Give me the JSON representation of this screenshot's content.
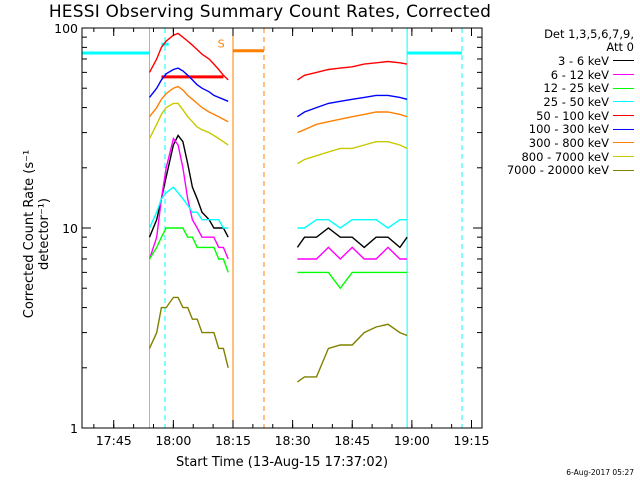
{
  "chart_data": {
    "type": "line",
    "title": "HESSI Observing Summary Count Rates, Corrected",
    "xlabel": "Start Time (13-Aug-15 17:37:02)",
    "ylabel": "Corrected Count Rate (s⁻¹ detector⁻¹)",
    "yscale": "log",
    "ylim": [
      1,
      100
    ],
    "xlim": [
      17.617,
      19.294
    ],
    "x_ticks": [
      {
        "h": 17.75,
        "label": "17:45"
      },
      {
        "h": 18.0,
        "label": "18:00"
      },
      {
        "h": 18.25,
        "label": "18:15"
      },
      {
        "h": 18.5,
        "label": "18:30"
      },
      {
        "h": 18.75,
        "label": "18:45"
      },
      {
        "h": 19.0,
        "label": "19:00"
      },
      {
        "h": 19.25,
        "label": "19:15"
      }
    ],
    "y_ticks": [
      {
        "v": 1,
        "label": "1"
      },
      {
        "v": 10,
        "label": "10"
      },
      {
        "v": 100,
        "label": "100"
      }
    ],
    "legend_header": [
      "Det 1,3,5,6,7,9,",
      "Att 0"
    ],
    "legend_position": "right, outside plot",
    "series": [
      {
        "name": "3 - 6 keV",
        "color": "#000000",
        "x": [
          17.9,
          17.93,
          17.95,
          17.97,
          18.0,
          18.02,
          18.04,
          18.06,
          18.08,
          18.1,
          18.12,
          18.15,
          18.17,
          18.19,
          18.21,
          18.23,
          18.52,
          18.55,
          18.6,
          18.65,
          18.7,
          18.75,
          18.8,
          18.85,
          18.9,
          18.95,
          18.98
        ],
        "y": [
          9,
          11,
          14,
          18,
          26,
          29,
          27,
          21,
          16,
          14,
          12,
          11,
          10,
          10,
          10,
          9,
          8,
          9,
          9,
          10,
          9,
          9,
          8,
          9,
          9,
          8,
          9
        ]
      },
      {
        "name": "6 - 12 keV",
        "color": "#ff00ff",
        "x": [
          17.9,
          17.93,
          17.95,
          17.97,
          18.0,
          18.02,
          18.04,
          18.06,
          18.08,
          18.1,
          18.12,
          18.15,
          18.17,
          18.19,
          18.21,
          18.23,
          18.52,
          18.55,
          18.6,
          18.65,
          18.7,
          18.75,
          18.8,
          18.85,
          18.9,
          18.95,
          18.98
        ],
        "y": [
          7,
          9,
          14,
          20,
          28,
          26,
          20,
          14,
          11,
          10,
          9,
          9,
          9,
          8,
          8,
          7,
          7,
          7,
          7,
          8,
          7,
          8,
          7,
          7,
          8,
          7,
          7
        ]
      },
      {
        "name": "12 - 25 keV",
        "color": "#00ff00",
        "x": [
          17.9,
          17.93,
          17.95,
          17.97,
          18.0,
          18.02,
          18.04,
          18.06,
          18.08,
          18.1,
          18.12,
          18.15,
          18.17,
          18.19,
          18.21,
          18.23,
          18.52,
          18.55,
          18.6,
          18.65,
          18.7,
          18.75,
          18.8,
          18.85,
          18.9,
          18.95,
          18.98
        ],
        "y": [
          7,
          8,
          9,
          10,
          10,
          10,
          10,
          9,
          9,
          8,
          8,
          8,
          8,
          7,
          7,
          6,
          6,
          6,
          6,
          6,
          5,
          6,
          6,
          6,
          6,
          6,
          6
        ]
      },
      {
        "name": "25 - 50 keV",
        "color": "#00ffff",
        "x": [
          17.9,
          17.93,
          17.95,
          17.97,
          18.0,
          18.02,
          18.04,
          18.06,
          18.08,
          18.1,
          18.12,
          18.15,
          18.17,
          18.19,
          18.21,
          18.23,
          18.52,
          18.55,
          18.6,
          18.65,
          18.7,
          18.75,
          18.8,
          18.85,
          18.9,
          18.95,
          18.98
        ],
        "y": [
          10,
          12,
          14,
          15,
          16,
          15,
          14,
          13,
          12,
          12,
          11,
          11,
          11,
          11,
          10,
          10,
          10,
          10,
          11,
          11,
          10,
          11,
          11,
          11,
          10,
          11,
          11
        ]
      },
      {
        "name": "50 - 100 keV",
        "color": "#ff0000",
        "x": [
          17.9,
          17.93,
          17.95,
          17.97,
          18.0,
          18.02,
          18.04,
          18.06,
          18.08,
          18.1,
          18.12,
          18.15,
          18.17,
          18.19,
          18.21,
          18.23,
          18.52,
          18.55,
          18.6,
          18.65,
          18.7,
          18.75,
          18.8,
          18.85,
          18.9,
          18.95,
          18.98
        ],
        "y": [
          60,
          70,
          80,
          86,
          92,
          94,
          90,
          86,
          82,
          78,
          74,
          70,
          66,
          62,
          58,
          55,
          55,
          58,
          60,
          62,
          63,
          64,
          66,
          67,
          68,
          67,
          66
        ]
      },
      {
        "name": "100 - 300 keV",
        "color": "#0000ff",
        "x": [
          17.9,
          17.93,
          17.95,
          17.97,
          18.0,
          18.02,
          18.04,
          18.06,
          18.08,
          18.1,
          18.12,
          18.15,
          18.17,
          18.19,
          18.21,
          18.23,
          18.52,
          18.55,
          18.6,
          18.65,
          18.7,
          18.75,
          18.8,
          18.85,
          18.9,
          18.95,
          18.98
        ],
        "y": [
          45,
          50,
          55,
          59,
          62,
          63,
          61,
          58,
          55,
          52,
          50,
          48,
          46,
          45,
          44,
          43,
          36,
          38,
          40,
          42,
          43,
          44,
          45,
          46,
          46,
          45,
          44
        ]
      },
      {
        "name": "300 - 800 keV",
        "color": "#ff8000",
        "x": [
          17.9,
          17.93,
          17.95,
          17.97,
          18.0,
          18.02,
          18.04,
          18.06,
          18.08,
          18.1,
          18.12,
          18.15,
          18.17,
          18.19,
          18.21,
          18.23,
          18.52,
          18.55,
          18.6,
          18.65,
          18.7,
          18.75,
          18.8,
          18.85,
          18.9,
          18.95,
          18.98
        ],
        "y": [
          36,
          40,
          44,
          47,
          50,
          51,
          49,
          46,
          44,
          42,
          40,
          38,
          37,
          36,
          35,
          34,
          30,
          31,
          33,
          34,
          35,
          36,
          37,
          38,
          38,
          37,
          36
        ]
      },
      {
        "name": "800 - 7000 keV",
        "color": "#c8c800",
        "x": [
          17.9,
          17.93,
          17.95,
          17.97,
          18.0,
          18.02,
          18.04,
          18.06,
          18.08,
          18.1,
          18.12,
          18.15,
          18.17,
          18.19,
          18.21,
          18.23,
          18.52,
          18.55,
          18.6,
          18.65,
          18.7,
          18.75,
          18.8,
          18.85,
          18.9,
          18.95,
          18.98
        ],
        "y": [
          28,
          33,
          37,
          40,
          42,
          42,
          39,
          36,
          34,
          32,
          31,
          30,
          29,
          28,
          27,
          26,
          21,
          22,
          23,
          24,
          25,
          25,
          26,
          27,
          27,
          26,
          25
        ]
      },
      {
        "name": "7000 - 20000 keV",
        "color": "#808000",
        "x": [
          17.9,
          17.93,
          17.95,
          17.97,
          18.0,
          18.02,
          18.04,
          18.06,
          18.08,
          18.1,
          18.12,
          18.15,
          18.17,
          18.19,
          18.21,
          18.23,
          18.52,
          18.55,
          18.6,
          18.65,
          18.7,
          18.75,
          18.8,
          18.85,
          18.9,
          18.95,
          18.98
        ],
        "y": [
          2.5,
          3.0,
          4.0,
          4.0,
          4.5,
          4.5,
          4.0,
          4.0,
          3.5,
          3.5,
          3.0,
          3.0,
          3.0,
          2.5,
          2.5,
          2.0,
          1.7,
          1.8,
          1.8,
          2.5,
          2.6,
          2.6,
          3.0,
          3.2,
          3.3,
          3.0,
          2.9
        ]
      }
    ],
    "level_lines": [
      {
        "color": "#00ffff",
        "y": 75,
        "x": [
          17.617,
          17.9
        ]
      },
      {
        "color": "#00ffff",
        "y": 75,
        "x": [
          18.98,
          19.21
        ]
      },
      {
        "color": "#00ffff",
        "y": 83,
        "x": [
          17.95,
          17.98
        ]
      },
      {
        "color": "#ff0000",
        "y": 57,
        "x": [
          17.95,
          18.21
        ]
      },
      {
        "color": "#ff8000",
        "y": 77,
        "x": [
          18.25,
          18.38
        ]
      }
    ],
    "vertical_markers": [
      {
        "color": "#00ffff",
        "x": 17.9,
        "style": "solid"
      },
      {
        "color": "#00ffff",
        "x": 17.965,
        "style": "dashed"
      },
      {
        "color": "#00ffff",
        "x": 18.98,
        "style": "solid"
      },
      {
        "color": "#00ffff",
        "x": 19.21,
        "style": "dashed"
      },
      {
        "color": "#ff8000",
        "x": 18.25,
        "style": "solid"
      },
      {
        "color": "#ff8000",
        "x": 18.38,
        "style": "dashed"
      }
    ],
    "annotations": [
      {
        "text": "S",
        "color": "#ff8000",
        "x": 18.2,
        "y": 80
      }
    ]
  },
  "stamp": "6-Aug-2017 05:27"
}
